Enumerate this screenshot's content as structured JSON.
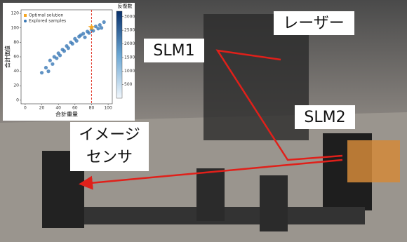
{
  "labels": {
    "laser": "レーザー",
    "slm1": "SLM1",
    "slm2": "SLM2",
    "sensor": [
      "イメージ",
      "センサ"
    ]
  },
  "chart_data": {
    "type": "scatter",
    "xlabel": "合計重量",
    "ylabel": "合計価値",
    "xlim": [
      -5,
      105
    ],
    "ylim": [
      -5,
      125
    ],
    "xticks": [
      0,
      20,
      40,
      60,
      80,
      100
    ],
    "yticks": [
      0,
      20,
      40,
      60,
      80,
      100,
      120
    ],
    "series": [
      {
        "name": "Explored samples",
        "color": "#3a78b5",
        "x": [
          20,
          25,
          28,
          30,
          33,
          35,
          38,
          40,
          42,
          45,
          47,
          50,
          52,
          55,
          57,
          60,
          62,
          65,
          67,
          70,
          72,
          75,
          77,
          80,
          82,
          85,
          88,
          90,
          92,
          95
        ],
        "values": [
          38,
          45,
          40,
          55,
          50,
          60,
          58,
          65,
          62,
          70,
          68,
          75,
          72,
          80,
          78,
          85,
          82,
          88,
          90,
          92,
          87,
          95,
          93,
          98,
          96,
          102,
          99,
          104,
          100,
          108
        ]
      },
      {
        "name": "Optimal solution",
        "color": "#f5a623",
        "x": [
          80
        ],
        "values": [
          101
        ]
      }
    ],
    "vline": {
      "x": 80,
      "color": "#e03020"
    },
    "colorbar": {
      "label": "反復数",
      "lim": [
        0,
        3200
      ],
      "ticks": [
        500,
        1000,
        1500,
        2000,
        2500,
        3000
      ]
    }
  }
}
